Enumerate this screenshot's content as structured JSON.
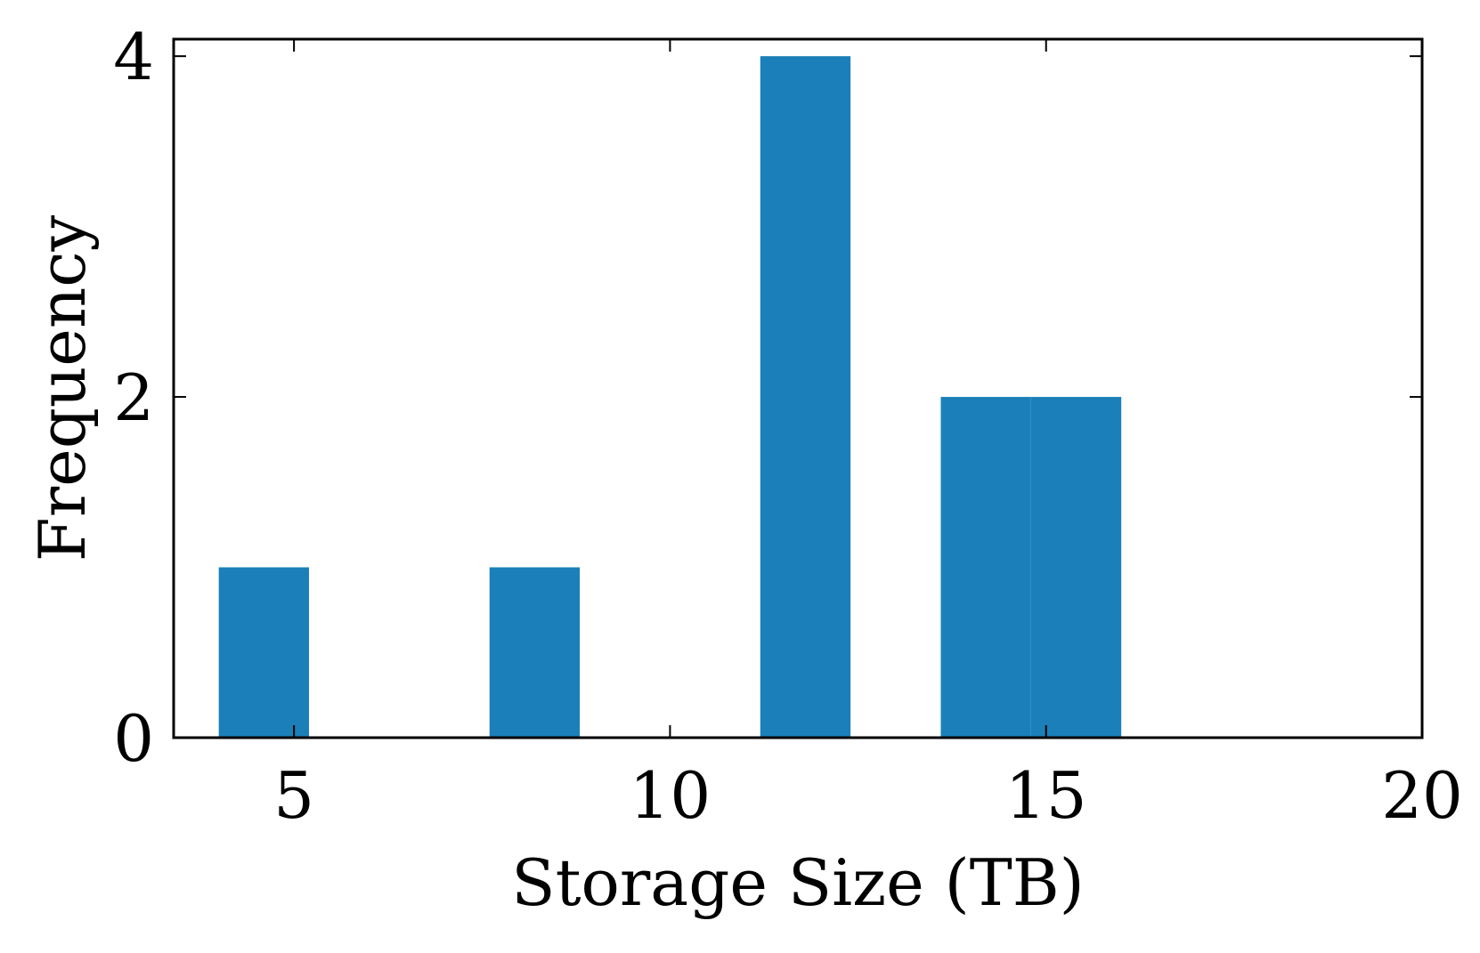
{
  "chart_data": {
    "type": "bar",
    "title": "",
    "xlabel": "Storage Size (TB)",
    "ylabel": "Frequency",
    "xlim": [
      3.4,
      20
    ],
    "ylim": [
      0,
      4.1
    ],
    "xticks": [
      5,
      10,
      15,
      20
    ],
    "xtick_labels": [
      "5",
      "10",
      "15",
      "20"
    ],
    "yticks": [
      0,
      2,
      4
    ],
    "ytick_labels": [
      "0",
      "2",
      "4"
    ],
    "bins": [
      {
        "x0": 4.0,
        "x1": 5.2,
        "value": 1
      },
      {
        "x0": 7.6,
        "x1": 8.8,
        "value": 1
      },
      {
        "x0": 11.2,
        "x1": 12.4,
        "value": 4
      },
      {
        "x0": 13.6,
        "x1": 14.8,
        "value": 2
      },
      {
        "x0": 14.8,
        "x1": 16.0,
        "value": 2
      }
    ],
    "bar_color": "#1b80b9",
    "grid": false,
    "legend": "none"
  }
}
